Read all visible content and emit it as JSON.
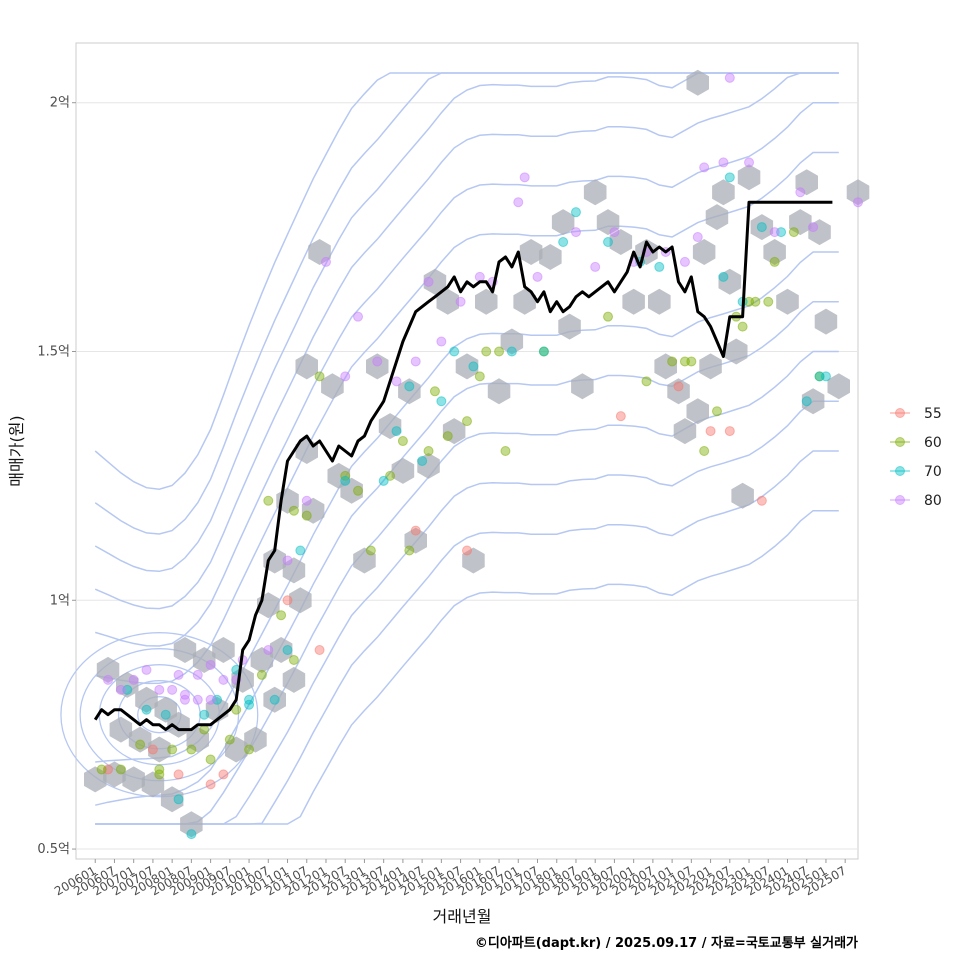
{
  "chart_data": {
    "type": "scatter",
    "xlabel": "거래년월",
    "ylabel": "매매가(원)",
    "caption": "©디아파트(dapt.kr) / 2025.09.17 / 자료=국토교통부 실거래가",
    "x_ticks": [
      "200601",
      "200607",
      "200701",
      "200707",
      "200801",
      "200807",
      "200901",
      "200907",
      "201001",
      "201007",
      "201101",
      "201107",
      "201201",
      "201207",
      "201301",
      "201307",
      "201401",
      "201407",
      "201501",
      "201507",
      "201601",
      "201607",
      "201701",
      "201707",
      "201801",
      "201807",
      "201901",
      "201907",
      "202001",
      "202007",
      "202101",
      "202107",
      "202201",
      "202207",
      "202301",
      "202307",
      "202401",
      "202407",
      "202501",
      "202507"
    ],
    "y_ticks": [
      {
        "value": 0.5,
        "label": "0.5억"
      },
      {
        "value": 1.0,
        "label": "1억"
      },
      {
        "value": 1.5,
        "label": "1.5억"
      },
      {
        "value": 2.0,
        "label": "2억"
      }
    ],
    "xlim": [
      -6,
      238
    ],
    "ylim": [
      0.48,
      2.12
    ],
    "legend": {
      "position": "right",
      "entries": [
        {
          "label": "55",
          "color": "#F8766D"
        },
        {
          "label": "60",
          "color": "#7CAE00"
        },
        {
          "label": "70",
          "color": "#00BFC4"
        },
        {
          "label": "80",
          "color": "#C77CFF"
        }
      ]
    },
    "series": [
      {
        "name": "median_price",
        "color": "#000000",
        "x": [
          0,
          2,
          4,
          6,
          8,
          10,
          12,
          14,
          16,
          18,
          20,
          22,
          24,
          26,
          28,
          30,
          32,
          34,
          36,
          38,
          40,
          42,
          44,
          46,
          48,
          50,
          52,
          54,
          56,
          58,
          60,
          62,
          64,
          66,
          68,
          70,
          72,
          74,
          76,
          78,
          80,
          82,
          84,
          86,
          88,
          90,
          92,
          94,
          96,
          98,
          100,
          102,
          104,
          106,
          108,
          110,
          112,
          114,
          116,
          118,
          120,
          122,
          124,
          126,
          128,
          130,
          132,
          134,
          136,
          138,
          140,
          142,
          144,
          146,
          148,
          150,
          152,
          154,
          156,
          158,
          160,
          162,
          164,
          166,
          168,
          170,
          172,
          174,
          176,
          178,
          180,
          182,
          184,
          186,
          188,
          190,
          192,
          194,
          196,
          198,
          200,
          202,
          204,
          206,
          208,
          210,
          212,
          214,
          216,
          218,
          220,
          222,
          224,
          226,
          228,
          230
        ],
        "y": [
          0.76,
          0.78,
          0.77,
          0.78,
          0.78,
          0.77,
          0.76,
          0.75,
          0.76,
          0.75,
          0.75,
          0.74,
          0.75,
          0.74,
          0.74,
          0.74,
          0.75,
          0.75,
          0.75,
          0.76,
          0.77,
          0.78,
          0.8,
          0.9,
          0.92,
          0.97,
          1.0,
          1.08,
          1.1,
          1.2,
          1.28,
          1.3,
          1.32,
          1.33,
          1.31,
          1.32,
          1.3,
          1.28,
          1.31,
          1.3,
          1.29,
          1.32,
          1.33,
          1.36,
          1.38,
          1.4,
          1.44,
          1.48,
          1.52,
          1.55,
          1.58,
          1.59,
          1.6,
          1.61,
          1.62,
          1.63,
          1.65,
          1.62,
          1.64,
          1.63,
          1.64,
          1.64,
          1.62,
          1.68,
          1.69,
          1.67,
          1.7,
          1.63,
          1.62,
          1.6,
          1.62,
          1.58,
          1.6,
          1.58,
          1.59,
          1.61,
          1.62,
          1.61,
          1.62,
          1.63,
          1.64,
          1.62,
          1.64,
          1.66,
          1.7,
          1.67,
          1.72,
          1.7,
          1.71,
          1.7,
          1.71,
          1.64,
          1.62,
          1.65,
          1.58,
          1.57,
          1.55,
          1.52,
          1.49,
          1.57,
          1.57,
          1.57,
          1.8,
          1.8,
          1.8,
          1.8,
          1.8,
          1.8,
          1.8,
          1.8,
          1.8,
          1.8,
          1.8,
          1.8,
          1.8,
          1.8
        ]
      }
    ],
    "hex_bins": [
      [
        0,
        0.64
      ],
      [
        6,
        0.65
      ],
      [
        12,
        0.64
      ],
      [
        18,
        0.63
      ],
      [
        24,
        0.6
      ],
      [
        30,
        0.55
      ],
      [
        4,
        0.86
      ],
      [
        10,
        0.83
      ],
      [
        16,
        0.8
      ],
      [
        22,
        0.78
      ],
      [
        28,
        0.9
      ],
      [
        34,
        0.88
      ],
      [
        40,
        0.9
      ],
      [
        46,
        0.84
      ],
      [
        52,
        0.88
      ],
      [
        58,
        0.9
      ],
      [
        62,
        0.84
      ],
      [
        8,
        0.74
      ],
      [
        14,
        0.72
      ],
      [
        20,
        0.7
      ],
      [
        26,
        0.75
      ],
      [
        32,
        0.72
      ],
      [
        38,
        0.78
      ],
      [
        44,
        0.7
      ],
      [
        50,
        0.72
      ],
      [
        56,
        0.8
      ],
      [
        54,
        0.99
      ],
      [
        56,
        1.08
      ],
      [
        62,
        1.06
      ],
      [
        60,
        1.2
      ],
      [
        64,
        1.0
      ],
      [
        68,
        1.18
      ],
      [
        66,
        1.3
      ],
      [
        66,
        1.47
      ],
      [
        70,
        1.7
      ],
      [
        74,
        1.43
      ],
      [
        76,
        1.25
      ],
      [
        80,
        1.22
      ],
      [
        84,
        1.08
      ],
      [
        88,
        1.47
      ],
      [
        92,
        1.35
      ],
      [
        96,
        1.26
      ],
      [
        98,
        1.42
      ],
      [
        100,
        1.12
      ],
      [
        104,
        1.27
      ],
      [
        106,
        1.64
      ],
      [
        110,
        1.6
      ],
      [
        112,
        1.34
      ],
      [
        116,
        1.47
      ],
      [
        118,
        1.08
      ],
      [
        122,
        1.6
      ],
      [
        126,
        1.42
      ],
      [
        130,
        1.52
      ],
      [
        134,
        1.6
      ],
      [
        136,
        1.7
      ],
      [
        142,
        1.69
      ],
      [
        146,
        1.76
      ],
      [
        148,
        1.55
      ],
      [
        152,
        1.43
      ],
      [
        156,
        1.82
      ],
      [
        160,
        1.76
      ],
      [
        164,
        1.72
      ],
      [
        168,
        1.6
      ],
      [
        172,
        1.7
      ],
      [
        176,
        1.6
      ],
      [
        178,
        1.47
      ],
      [
        182,
        1.42
      ],
      [
        184,
        1.34
      ],
      [
        188,
        1.38
      ],
      [
        190,
        1.7
      ],
      [
        192,
        1.47
      ],
      [
        194,
        1.77
      ],
      [
        196,
        1.82
      ],
      [
        198,
        1.64
      ],
      [
        200,
        1.5
      ],
      [
        202,
        1.21
      ],
      [
        204,
        1.85
      ],
      [
        208,
        1.75
      ],
      [
        212,
        1.7
      ],
      [
        216,
        1.6
      ],
      [
        220,
        1.76
      ],
      [
        222,
        1.84
      ],
      [
        224,
        1.4
      ],
      [
        226,
        1.74
      ],
      [
        228,
        1.56
      ],
      [
        232,
        1.43
      ],
      [
        238,
        1.82
      ],
      [
        188,
        2.04
      ]
    ],
    "scatter": [
      {
        "size": "55",
        "points": [
          [
            4,
            0.66
          ],
          [
            18,
            0.7
          ],
          [
            26,
            0.65
          ],
          [
            36,
            0.63
          ],
          [
            40,
            0.65
          ],
          [
            60,
            1.0
          ],
          [
            70,
            0.9
          ],
          [
            100,
            1.14
          ],
          [
            116,
            1.1
          ],
          [
            164,
            1.37
          ],
          [
            182,
            1.43
          ],
          [
            198,
            1.34
          ],
          [
            208,
            1.2
          ],
          [
            192,
            1.34
          ]
        ]
      },
      {
        "size": "60",
        "points": [
          [
            2,
            0.66
          ],
          [
            8,
            0.66
          ],
          [
            14,
            0.71
          ],
          [
            20,
            0.66
          ],
          [
            24,
            0.7
          ],
          [
            30,
            0.7
          ],
          [
            36,
            0.68
          ],
          [
            42,
            0.72
          ],
          [
            48,
            0.7
          ],
          [
            52,
            0.85
          ],
          [
            58,
            0.97
          ],
          [
            62,
            0.88
          ],
          [
            66,
            1.17
          ],
          [
            70,
            1.45
          ],
          [
            78,
            1.25
          ],
          [
            82,
            1.22
          ],
          [
            86,
            1.1
          ],
          [
            92,
            1.25
          ],
          [
            98,
            1.1
          ],
          [
            104,
            1.3
          ],
          [
            110,
            1.33
          ],
          [
            116,
            1.36
          ],
          [
            120,
            1.45
          ],
          [
            126,
            1.5
          ],
          [
            128,
            1.3
          ],
          [
            140,
            1.5
          ],
          [
            160,
            1.57
          ],
          [
            172,
            1.44
          ],
          [
            184,
            1.48
          ],
          [
            190,
            1.3
          ],
          [
            194,
            1.38
          ],
          [
            200,
            1.57
          ],
          [
            204,
            1.6
          ],
          [
            206,
            1.6
          ],
          [
            212,
            1.68
          ],
          [
            218,
            1.74
          ],
          [
            226,
            1.45
          ],
          [
            20,
            0.65
          ],
          [
            34,
            0.74
          ],
          [
            44,
            0.78
          ],
          [
            54,
            1.2
          ],
          [
            62,
            1.18
          ],
          [
            106,
            1.42
          ],
          [
            96,
            1.32
          ],
          [
            122,
            1.5
          ],
          [
            180,
            1.48
          ],
          [
            186,
            1.48
          ],
          [
            202,
            1.55
          ],
          [
            210,
            1.6
          ]
        ]
      },
      {
        "size": "70",
        "points": [
          [
            10,
            0.82
          ],
          [
            16,
            0.78
          ],
          [
            22,
            0.77
          ],
          [
            26,
            0.6
          ],
          [
            30,
            0.53
          ],
          [
            34,
            0.77
          ],
          [
            38,
            0.8
          ],
          [
            44,
            0.86
          ],
          [
            48,
            0.79
          ],
          [
            56,
            0.8
          ],
          [
            60,
            0.9
          ],
          [
            64,
            1.1
          ],
          [
            78,
            1.24
          ],
          [
            90,
            1.24
          ],
          [
            94,
            1.34
          ],
          [
            98,
            1.43
          ],
          [
            102,
            1.28
          ],
          [
            108,
            1.4
          ],
          [
            112,
            1.5
          ],
          [
            118,
            1.47
          ],
          [
            130,
            1.5
          ],
          [
            140,
            1.5
          ],
          [
            146,
            1.72
          ],
          [
            150,
            1.78
          ],
          [
            160,
            1.72
          ],
          [
            170,
            1.68
          ],
          [
            176,
            1.67
          ],
          [
            196,
            1.65
          ],
          [
            202,
            1.6
          ],
          [
            208,
            1.75
          ],
          [
            214,
            1.74
          ],
          [
            222,
            1.4
          ],
          [
            226,
            1.45
          ],
          [
            228,
            1.45
          ],
          [
            198,
            1.85
          ],
          [
            48,
            0.8
          ]
        ]
      },
      {
        "size": "80",
        "points": [
          [
            4,
            0.84
          ],
          [
            8,
            0.82
          ],
          [
            12,
            0.84
          ],
          [
            16,
            0.86
          ],
          [
            20,
            0.82
          ],
          [
            24,
            0.82
          ],
          [
            26,
            0.85
          ],
          [
            28,
            0.8
          ],
          [
            32,
            0.85
          ],
          [
            36,
            0.87
          ],
          [
            40,
            0.84
          ],
          [
            44,
            0.84
          ],
          [
            46,
            0.88
          ],
          [
            54,
            0.9
          ],
          [
            60,
            1.08
          ],
          [
            66,
            1.2
          ],
          [
            72,
            1.68
          ],
          [
            78,
            1.45
          ],
          [
            82,
            1.57
          ],
          [
            88,
            1.48
          ],
          [
            94,
            1.44
          ],
          [
            100,
            1.48
          ],
          [
            104,
            1.64
          ],
          [
            108,
            1.52
          ],
          [
            114,
            1.6
          ],
          [
            120,
            1.65
          ],
          [
            124,
            1.64
          ],
          [
            132,
            1.8
          ],
          [
            134,
            1.85
          ],
          [
            138,
            1.65
          ],
          [
            150,
            1.74
          ],
          [
            156,
            1.67
          ],
          [
            162,
            1.74
          ],
          [
            168,
            1.68
          ],
          [
            172,
            1.7
          ],
          [
            178,
            1.7
          ],
          [
            184,
            1.68
          ],
          [
            188,
            1.73
          ],
          [
            190,
            1.87
          ],
          [
            196,
            1.88
          ],
          [
            198,
            2.05
          ],
          [
            204,
            1.88
          ],
          [
            212,
            1.74
          ],
          [
            220,
            1.82
          ],
          [
            224,
            1.75
          ],
          [
            238,
            1.8
          ],
          [
            28,
            0.81
          ],
          [
            32,
            0.8
          ],
          [
            36,
            0.8
          ]
        ]
      }
    ]
  }
}
